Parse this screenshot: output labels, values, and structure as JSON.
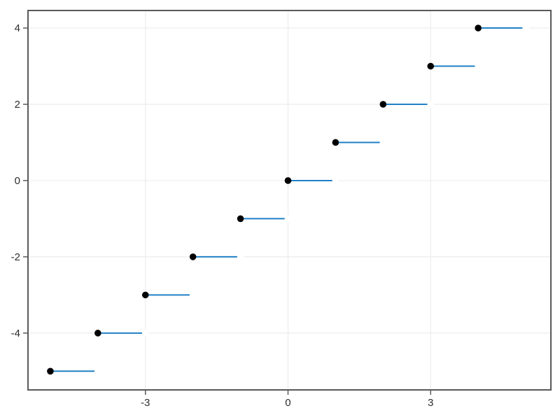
{
  "figure": {
    "background_color": "#ffffff"
  },
  "chart_data": {
    "type": "step",
    "description": "floor-style step function: closed dot at (k,k), horizontal segment to (k+1,k), open endpoint at (k+1,k)",
    "title": "",
    "xlabel": "",
    "ylabel": "",
    "xlim": [
      -5.47,
      5.53
    ],
    "ylim": [
      -5.49,
      4.46
    ],
    "grid": true,
    "legend": "none",
    "xticks": [
      -3,
      0,
      3
    ],
    "xtick_labels": [
      "-3",
      "0",
      "3"
    ],
    "yticks": [
      -4,
      -2,
      0,
      2,
      4
    ],
    "ytick_labels": [
      "-4",
      "-2",
      "0",
      "2",
      "4"
    ],
    "segments": [
      {
        "x0": -5,
        "x1": -4,
        "y": -5
      },
      {
        "x0": -4,
        "x1": -3,
        "y": -4
      },
      {
        "x0": -3,
        "x1": -2,
        "y": -3
      },
      {
        "x0": -2,
        "x1": -1,
        "y": -2
      },
      {
        "x0": -1,
        "x1": 0,
        "y": -1
      },
      {
        "x0": 0,
        "x1": 1,
        "y": 0
      },
      {
        "x0": 1,
        "x1": 2,
        "y": 1
      },
      {
        "x0": 2,
        "x1": 3,
        "y": 2
      },
      {
        "x0": 3,
        "x1": 4,
        "y": 3
      },
      {
        "x0": 4,
        "x1": 5,
        "y": 4
      }
    ],
    "closed_points": [
      [
        -5,
        -5
      ],
      [
        -4,
        -4
      ],
      [
        -3,
        -3
      ],
      [
        -2,
        -2
      ],
      [
        -1,
        -1
      ],
      [
        0,
        0
      ],
      [
        1,
        1
      ],
      [
        2,
        2
      ],
      [
        3,
        3
      ],
      [
        4,
        4
      ]
    ],
    "open_points": [
      [
        -4,
        -5
      ],
      [
        -3,
        -4
      ],
      [
        -2,
        -3
      ],
      [
        -1,
        -2
      ],
      [
        0,
        -1
      ],
      [
        1,
        0
      ],
      [
        2,
        1
      ],
      [
        3,
        2
      ],
      [
        4,
        3
      ],
      [
        5,
        4
      ]
    ],
    "colors": {
      "line": "#2080c6",
      "closed_marker": "#000000",
      "open_marker": "#ffffff",
      "frame": "#595959",
      "tick": "#595959",
      "grid": "#ececec",
      "tick_label": "#2e2e2e"
    },
    "style": {
      "line_width": 2,
      "marker_radius": 4.8,
      "frame_width": 2,
      "grid_width": 1.2,
      "tick_length": 6,
      "tick_font_size": 15
    }
  }
}
